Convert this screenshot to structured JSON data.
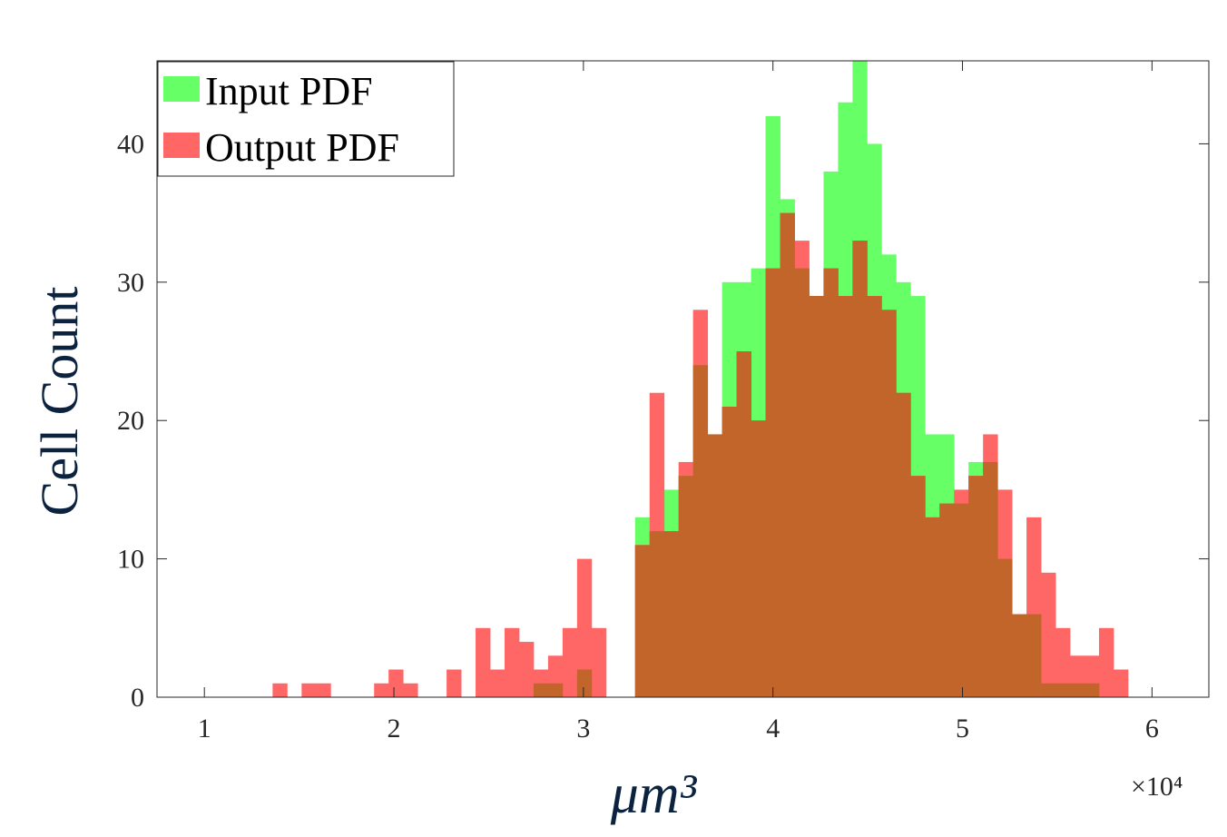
{
  "chart_data": {
    "type": "bar",
    "title": "",
    "xlabel": "μm³",
    "ylabel": "Cell Count",
    "x_exponent_label": "×10⁴",
    "x_scale_factor": 10000,
    "xlim": [
      0.75,
      6.3
    ],
    "ylim": [
      0,
      46
    ],
    "xticks": [
      1,
      2,
      3,
      4,
      5,
      6
    ],
    "yticks": [
      0,
      10,
      20,
      30,
      40
    ],
    "bin_start": 1.36,
    "bin_width": 0.0765,
    "grid": false,
    "legend_position": "top-left",
    "series": [
      {
        "name": "Input PDF",
        "color": "#66ff66",
        "values": [
          0,
          0,
          0,
          0,
          0,
          0,
          0,
          0,
          0,
          0,
          0,
          0,
          0,
          0,
          0,
          0,
          0,
          0,
          1,
          1,
          0,
          2,
          0,
          0,
          0,
          13,
          12,
          15,
          16,
          24,
          19,
          30,
          30,
          31,
          42,
          36,
          31,
          29,
          38,
          43,
          46,
          40,
          32,
          30,
          29,
          19,
          19,
          14,
          17,
          17,
          10,
          6,
          6,
          1,
          1,
          1,
          1,
          0
        ]
      },
      {
        "name": "Output PDF",
        "color": "#ff6666",
        "values": [
          1,
          0,
          1,
          1,
          0,
          0,
          0,
          1,
          2,
          1,
          0,
          0,
          2,
          0,
          5,
          2,
          5,
          4,
          2,
          3,
          5,
          10,
          5,
          0,
          0,
          11,
          22,
          12,
          17,
          28,
          19,
          21,
          25,
          20,
          31,
          35,
          33,
          29,
          31,
          29,
          33,
          29,
          28,
          22,
          16,
          13,
          14,
          15,
          16,
          19,
          15,
          6,
          13,
          9,
          5,
          3,
          3,
          5,
          2
        ]
      }
    ]
  },
  "chart": {
    "overlap_color": "#c2652b"
  }
}
